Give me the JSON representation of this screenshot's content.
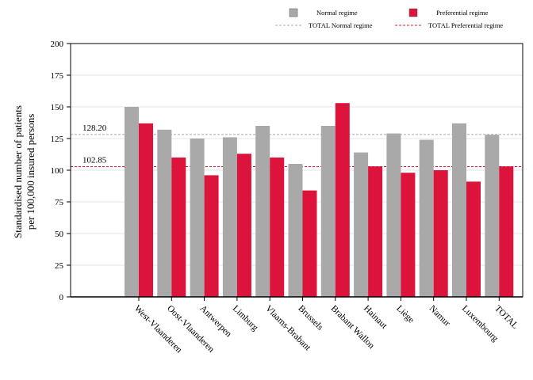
{
  "chart_data": {
    "type": "bar",
    "title": "",
    "xlabel": "",
    "ylabel_lines": [
      "Standardised number of patients",
      "per 100,000 insured persons"
    ],
    "ylim": [
      0,
      200
    ],
    "yticks": [
      0,
      25,
      50,
      75,
      100,
      125,
      150,
      175,
      200
    ],
    "grid": true,
    "legend_position": "top-right",
    "categories": [
      "West-Vlaanderen",
      "Oost-Vlaanderen",
      "Antwerpen",
      "Limburg",
      "Vlaams-Brabant",
      "Brussels",
      "Brabant Wallon",
      "Hainaut",
      "Liège",
      "Namur",
      "Luxembourg",
      "TOTAL"
    ],
    "series": [
      {
        "name": "Normal regime",
        "color": "#a9a9a9",
        "values": [
          150,
          132,
          125,
          126,
          135,
          105,
          135,
          114,
          129,
          124,
          137,
          128
        ]
      },
      {
        "name": "Preferential regime",
        "color": "#dc143c",
        "values": [
          137,
          110,
          96,
          113,
          110,
          84,
          153,
          103,
          98,
          100,
          91,
          103
        ]
      }
    ],
    "reference_lines": [
      {
        "name": "TOTAL Normal regime",
        "value": 128.2,
        "label": "128.20",
        "color": "#a9a9a9"
      },
      {
        "name": "TOTAL Preferential regime",
        "value": 102.85,
        "label": "102.85",
        "color": "#dc143c"
      }
    ]
  }
}
